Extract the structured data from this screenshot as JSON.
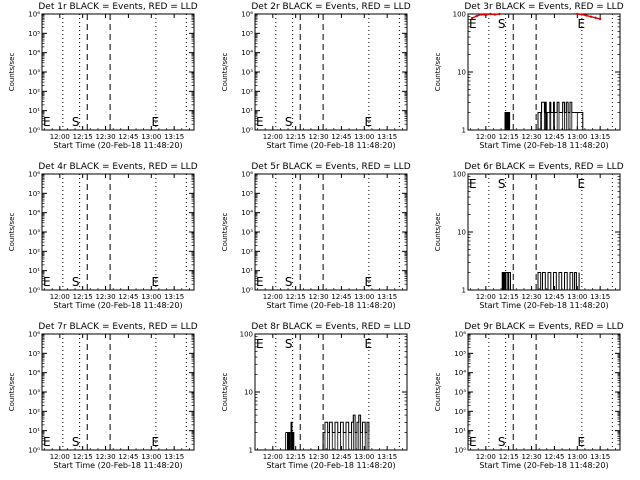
{
  "colors": {
    "events": "#000000",
    "lld": "#dd0000",
    "background": "#ffffff"
  },
  "chart_data": [
    {
      "type": "line",
      "title": "Det 1r BLACK = Events, RED = LLD",
      "scale": "log_sci",
      "ylabel": "Counts/sec",
      "ylim": [
        1,
        1000000
      ],
      "ytick_labels": [
        "10⁰",
        "10¹",
        "10²",
        "10³",
        "10⁴",
        "10⁵",
        "10⁶"
      ],
      "xlabel": "Start Time (20-Feb-18 11:48:20)",
      "xtick_labels": [
        "12:00",
        "12:15",
        "12:30",
        "12:45",
        "13:00",
        "13:15"
      ],
      "markers": {
        "S": "S",
        "E": "E"
      },
      "events": [],
      "lld": []
    },
    {
      "type": "line",
      "title": "Det 2r BLACK = Events, RED = LLD",
      "scale": "log_sci",
      "ylabel": "Counts/sec",
      "ylim": [
        1,
        1000000
      ],
      "ytick_labels": [
        "10⁰",
        "10¹",
        "10²",
        "10³",
        "10⁴",
        "10⁵",
        "10⁶"
      ],
      "xlabel": "Start Time (20-Feb-18 11:48:20)",
      "xtick_labels": [
        "12:00",
        "12:15",
        "12:30",
        "12:45",
        "13:00",
        "13:15"
      ],
      "markers": {
        "S": "S",
        "E": "E"
      },
      "events": [],
      "lld": []
    },
    {
      "type": "line",
      "title": "Det 3r BLACK = Events, RED = LLD",
      "scale": "log_plain",
      "ylabel": "Counts/sec",
      "ylim": [
        1,
        100
      ],
      "ytick_labels": [
        "1",
        "10",
        "100"
      ],
      "xlabel": "Start Time (20-Feb-18 11:48:20)",
      "xtick_labels": [
        "12:00",
        "12:15",
        "12:30",
        "12:45",
        "13:00",
        "13:15"
      ],
      "markers": {
        "S": "S",
        "E": "E"
      },
      "events": [
        {
          "t": 12.2,
          "v": 1.0
        },
        {
          "t": 12.21,
          "v": 2.0
        },
        {
          "t": 12.22,
          "v": 1.0
        },
        {
          "t": 12.23,
          "v": 2.0
        },
        {
          "t": 12.24,
          "v": 1.0
        },
        {
          "t": 12.25,
          "v": 2.0
        },
        {
          "t": 12.26,
          "v": 1.0
        },
        {
          "t": 12.56,
          "v": 1.0
        },
        {
          "t": 12.57,
          "v": 2.0
        },
        {
          "t": 12.6,
          "v": 2.0
        },
        {
          "t": 12.61,
          "v": 3.0
        },
        {
          "t": 12.64,
          "v": 2.0
        },
        {
          "t": 12.65,
          "v": 3.0
        },
        {
          "t": 12.66,
          "v": 1.0
        },
        {
          "t": 12.67,
          "v": 2.0
        },
        {
          "t": 12.7,
          "v": 3.0
        },
        {
          "t": 12.71,
          "v": 2.0
        },
        {
          "t": 12.74,
          "v": 3.0
        },
        {
          "t": 12.75,
          "v": 2.0
        },
        {
          "t": 12.78,
          "v": 3.0
        },
        {
          "t": 12.8,
          "v": 2.0
        },
        {
          "t": 12.84,
          "v": 3.0
        },
        {
          "t": 12.86,
          "v": 2.0
        },
        {
          "t": 12.88,
          "v": 3.0
        },
        {
          "t": 12.9,
          "v": 2.0
        },
        {
          "t": 12.92,
          "v": 3.0
        },
        {
          "t": 12.94,
          "v": 2.0
        },
        {
          "t": 13.0,
          "v": 2.0
        },
        {
          "t": 13.06,
          "v": 1.0
        }
      ],
      "lld": [
        {
          "t": 11.85,
          "v": 85
        },
        {
          "t": 11.9,
          "v": 92
        },
        {
          "t": 11.95,
          "v": 98
        },
        {
          "t": 12.0,
          "v": 96
        },
        {
          "t": 12.05,
          "v": 100
        },
        {
          "t": 12.1,
          "v": 98
        },
        {
          "t": 12.15,
          "v": 100
        },
        {
          "t": 13.0,
          "v": 100
        },
        {
          "t": 13.05,
          "v": 98
        },
        {
          "t": 13.1,
          "v": 94
        },
        {
          "t": 13.15,
          "v": 90
        },
        {
          "t": 13.2,
          "v": 86
        },
        {
          "t": 13.25,
          "v": 82
        }
      ]
    },
    {
      "type": "line",
      "title": "Det 4r BLACK = Events, RED = LLD",
      "scale": "log_sci",
      "ylabel": "Counts/sec",
      "ylim": [
        1,
        1000000
      ],
      "ytick_labels": [
        "10⁰",
        "10¹",
        "10²",
        "10³",
        "10⁴",
        "10⁵",
        "10⁶"
      ],
      "xlabel": "Start Time (20-Feb-18 11:48:20)",
      "xtick_labels": [
        "12:00",
        "12:15",
        "12:30",
        "12:45",
        "13:00",
        "13:15"
      ],
      "markers": {
        "S": "S",
        "E": "E"
      },
      "events": [],
      "lld": []
    },
    {
      "type": "line",
      "title": "Det 5r BLACK = Events, RED = LLD",
      "scale": "log_sci",
      "ylabel": "Counts/sec",
      "ylim": [
        1,
        1000000
      ],
      "ytick_labels": [
        "10⁰",
        "10¹",
        "10²",
        "10³",
        "10⁴",
        "10⁵",
        "10⁶"
      ],
      "xlabel": "Start Time (20-Feb-18 11:48:20)",
      "xtick_labels": [
        "12:00",
        "12:15",
        "12:30",
        "12:45",
        "13:00",
        "13:15"
      ],
      "markers": {
        "S": "S",
        "E": "E"
      },
      "events": [],
      "lld": []
    },
    {
      "type": "line",
      "title": "Det 6r BLACK = Events, RED = LLD",
      "scale": "log_plain",
      "ylabel": "Counts/sec",
      "ylim": [
        1,
        100
      ],
      "ytick_labels": [
        "1",
        "10",
        "100"
      ],
      "xlabel": "Start Time (20-Feb-18 11:48:20)",
      "xtick_labels": [
        "12:00",
        "12:15",
        "12:30",
        "12:45",
        "13:00",
        "13:15"
      ],
      "markers": {
        "S": "S",
        "E": "E"
      },
      "events": [
        {
          "t": 12.16,
          "v": 1.0
        },
        {
          "t": 12.18,
          "v": 2.0
        },
        {
          "t": 12.19,
          "v": 1.0
        },
        {
          "t": 12.2,
          "v": 2.0
        },
        {
          "t": 12.21,
          "v": 1.0
        },
        {
          "t": 12.22,
          "v": 2.0
        },
        {
          "t": 12.24,
          "v": 1.0
        },
        {
          "t": 12.25,
          "v": 2.0
        },
        {
          "t": 12.27,
          "v": 1.0
        },
        {
          "t": 12.57,
          "v": 2.0
        },
        {
          "t": 12.6,
          "v": 1.0
        },
        {
          "t": 12.62,
          "v": 2.0
        },
        {
          "t": 12.65,
          "v": 1.0
        },
        {
          "t": 12.68,
          "v": 2.0
        },
        {
          "t": 12.71,
          "v": 1.0
        },
        {
          "t": 12.74,
          "v": 2.0
        },
        {
          "t": 12.77,
          "v": 1.0
        },
        {
          "t": 12.8,
          "v": 2.0
        },
        {
          "t": 12.83,
          "v": 1.0
        },
        {
          "t": 12.86,
          "v": 2.0
        },
        {
          "t": 12.89,
          "v": 1.0
        },
        {
          "t": 12.92,
          "v": 2.0
        },
        {
          "t": 12.95,
          "v": 1.0
        },
        {
          "t": 12.97,
          "v": 2.0
        },
        {
          "t": 12.99,
          "v": 1.0
        },
        {
          "t": 13.02,
          "v": 2.0
        }
      ],
      "lld": []
    },
    {
      "type": "line",
      "title": "Det 7r BLACK = Events, RED = LLD",
      "scale": "log_sci",
      "ylabel": "Counts/sec",
      "ylim": [
        1,
        1000000
      ],
      "ytick_labels": [
        "10⁰",
        "10¹",
        "10²",
        "10³",
        "10⁴",
        "10⁵",
        "10⁶"
      ],
      "xlabel": "Start Time (20-Feb-18 11:48:20)",
      "xtick_labels": [
        "12:00",
        "12:15",
        "12:30",
        "12:45",
        "13:00",
        "13:15"
      ],
      "markers": {
        "S": "S",
        "E": "E"
      },
      "events": [],
      "lld": []
    },
    {
      "type": "line",
      "title": "Det 8r BLACK = Events, RED = LLD",
      "scale": "log_plain",
      "ylabel": "Counts/sec",
      "ylim": [
        1,
        100
      ],
      "ytick_labels": [
        "1",
        "10",
        "100"
      ],
      "xlabel": "Start Time (20-Feb-18 11:48:20)",
      "xtick_labels": [
        "12:00",
        "12:15",
        "12:30",
        "12:45",
        "13:00",
        "13:15"
      ],
      "markers": {
        "S": "S",
        "E": "E"
      },
      "events": [
        {
          "t": 12.14,
          "v": 2.0
        },
        {
          "t": 12.16,
          "v": 1.0
        },
        {
          "t": 12.17,
          "v": 2.0
        },
        {
          "t": 12.18,
          "v": 1.0
        },
        {
          "t": 12.19,
          "v": 2.0
        },
        {
          "t": 12.2,
          "v": 3.0
        },
        {
          "t": 12.21,
          "v": 1.0
        },
        {
          "t": 12.22,
          "v": 2.0
        },
        {
          "t": 12.23,
          "v": 1.0
        },
        {
          "t": 12.55,
          "v": 2.0
        },
        {
          "t": 12.57,
          "v": 3.0
        },
        {
          "t": 12.6,
          "v": 2.0
        },
        {
          "t": 12.62,
          "v": 3.0
        },
        {
          "t": 12.65,
          "v": 2.0
        },
        {
          "t": 12.68,
          "v": 3.0
        },
        {
          "t": 12.71,
          "v": 2.0
        },
        {
          "t": 12.74,
          "v": 3.0
        },
        {
          "t": 12.77,
          "v": 2.0
        },
        {
          "t": 12.8,
          "v": 3.0
        },
        {
          "t": 12.83,
          "v": 2.0
        },
        {
          "t": 12.86,
          "v": 3.0
        },
        {
          "t": 12.88,
          "v": 4.0
        },
        {
          "t": 12.9,
          "v": 2.0
        },
        {
          "t": 12.92,
          "v": 3.0
        },
        {
          "t": 12.94,
          "v": 4.0
        },
        {
          "t": 12.96,
          "v": 2.0
        },
        {
          "t": 12.98,
          "v": 3.0
        },
        {
          "t": 13.01,
          "v": 2.0
        },
        {
          "t": 13.03,
          "v": 3.0
        },
        {
          "t": 13.05,
          "v": 2.0
        }
      ],
      "lld": []
    },
    {
      "type": "line",
      "title": "Det 9r BLACK = Events, RED = LLD",
      "scale": "log_sci",
      "ylabel": "Counts/sec",
      "ylim": [
        1,
        1000000
      ],
      "ytick_labels": [
        "10⁰",
        "10¹",
        "10²",
        "10³",
        "10⁴",
        "10⁵",
        "10⁶"
      ],
      "xlabel": "Start Time (20-Feb-18 11:48:20)",
      "xtick_labels": [
        "12:00",
        "12:15",
        "12:30",
        "12:45",
        "13:00",
        "13:15"
      ],
      "markers": {
        "S": "S",
        "E": "E"
      },
      "events": [],
      "lld": []
    }
  ]
}
